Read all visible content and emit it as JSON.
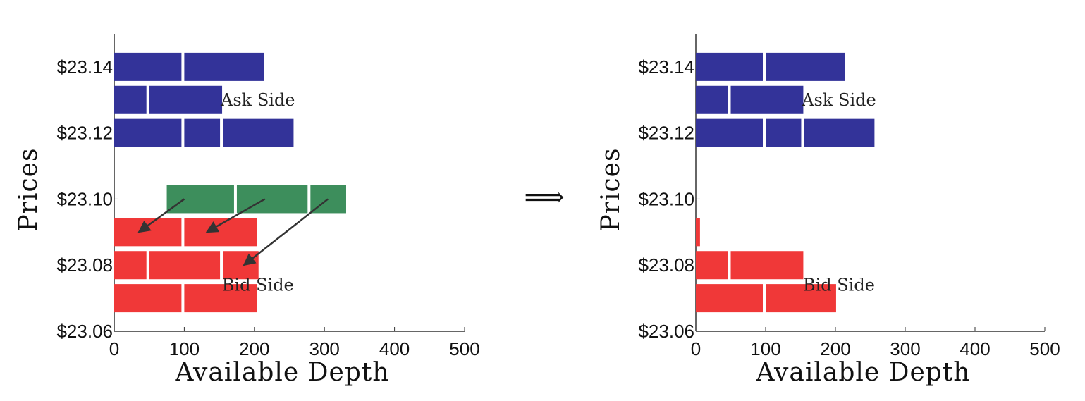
{
  "transition_symbol": "⟹",
  "colors": {
    "ask": "#333399",
    "incoming": "#3d8e5c",
    "bid": "#f03838",
    "arrow": "#333333",
    "axis": "#333333"
  },
  "chart_data": [
    {
      "type": "bar",
      "orientation": "horizontal-stacked-orders",
      "title": "",
      "xlabel": "Available Depth",
      "ylabel": "Prices",
      "xlim": [
        0,
        500
      ],
      "ylim": [
        23.06,
        23.15
      ],
      "x_ticks": [
        "0",
        "100",
        "200",
        "300",
        "400",
        "500"
      ],
      "y_ticks": [
        "$23.14",
        "$23.12",
        "$23.10",
        "$23.08",
        "$23.06"
      ],
      "y_tick_values": [
        23.14,
        23.12,
        23.1,
        23.08,
        23.06
      ],
      "annotations": [
        "Ask Side",
        "Bid Side"
      ],
      "series": [
        {
          "side": "ask",
          "levels": [
            {
              "price": 23.14,
              "orders": [
                100,
                118
              ],
              "total": 218
            },
            {
              "price": 23.13,
              "orders": [
                50,
                108
              ],
              "total": 158
            },
            {
              "price": 23.12,
              "orders": [
                100,
                55,
                105
              ],
              "total": 260
            }
          ]
        },
        {
          "side": "incoming",
          "start": 75,
          "levels": [
            {
              "price": 23.1,
              "orders": [
                100,
                105,
                55
              ],
              "total": 260
            }
          ]
        },
        {
          "side": "bid",
          "levels": [
            {
              "price": 23.09,
              "orders": [
                100,
                108
              ],
              "total": 208
            },
            {
              "price": 23.08,
              "orders": [
                50,
                105,
                55
              ],
              "total": 210
            },
            {
              "price": 23.07,
              "orders": [
                100,
                108
              ],
              "total": 208
            }
          ]
        }
      ],
      "arrows": [
        {
          "from": [
            100,
            23.1
          ],
          "to": [
            35,
            23.09
          ]
        },
        {
          "from": [
            215,
            23.1
          ],
          "to": [
            132,
            23.09
          ]
        },
        {
          "from": [
            305,
            23.1
          ],
          "to": [
            185,
            23.08
          ]
        }
      ]
    },
    {
      "type": "bar",
      "orientation": "horizontal-stacked-orders",
      "title": "",
      "xlabel": "Available Depth",
      "ylabel": "Prices",
      "xlim": [
        0,
        500
      ],
      "ylim": [
        23.06,
        23.15
      ],
      "x_ticks": [
        "0",
        "100",
        "200",
        "300",
        "400",
        "500"
      ],
      "y_ticks": [
        "$23.14",
        "$23.12",
        "$23.10",
        "$23.08",
        "$23.06"
      ],
      "y_tick_values": [
        23.14,
        23.12,
        23.1,
        23.08,
        23.06
      ],
      "annotations": [
        "Ask Side",
        "Bid Side"
      ],
      "series": [
        {
          "side": "ask",
          "levels": [
            {
              "price": 23.14,
              "orders": [
                100,
                118
              ],
              "total": 218
            },
            {
              "price": 23.13,
              "orders": [
                50,
                108
              ],
              "total": 158
            },
            {
              "price": 23.12,
              "orders": [
                100,
                55,
                105
              ],
              "total": 260
            }
          ]
        },
        {
          "side": "bid",
          "levels": [
            {
              "price": 23.09,
              "orders": [
                10
              ],
              "total": 10
            },
            {
              "price": 23.08,
              "orders": [
                50,
                108
              ],
              "total": 158
            },
            {
              "price": 23.07,
              "orders": [
                100,
                105
              ],
              "total": 205
            }
          ]
        }
      ],
      "arrows": []
    }
  ]
}
